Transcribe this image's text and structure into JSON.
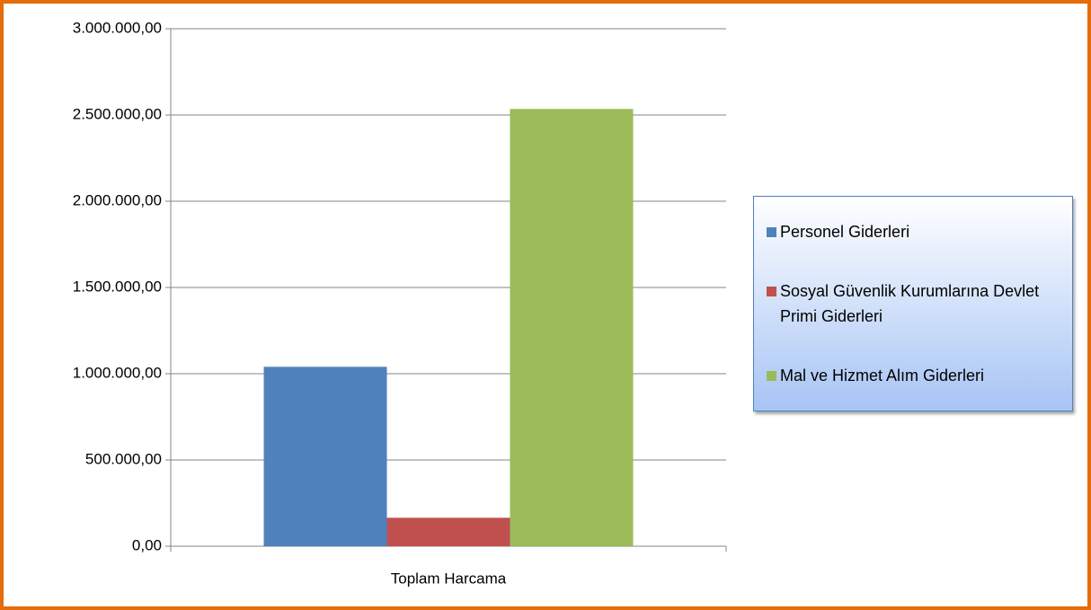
{
  "chart_data": {
    "type": "bar",
    "categories": [
      "Toplam Harcama"
    ],
    "series": [
      {
        "name": "Personel Giderleri",
        "color": "#4f81bd",
        "values": [
          1040000
        ]
      },
      {
        "name": "Sosyal Güvenlik Kurumlarına Devlet Primi Giderleri",
        "color": "#c0504d",
        "values": [
          165000
        ]
      },
      {
        "name": "Mal ve Hizmet Alım Giderleri",
        "color": "#9bbb59",
        "values": [
          2535000
        ]
      }
    ],
    "ylim": [
      0,
      3000000
    ],
    "yticks": [
      {
        "value": 0,
        "label": "0,00"
      },
      {
        "value": 500000,
        "label": "500.000,00"
      },
      {
        "value": 1000000,
        "label": "1.000.000,00"
      },
      {
        "value": 1500000,
        "label": "1.500.000,00"
      },
      {
        "value": 2000000,
        "label": "2.000.000,00"
      },
      {
        "value": 2500000,
        "label": "2.500.000,00"
      },
      {
        "value": 3000000,
        "label": "3.000.000,00"
      }
    ],
    "grid": true,
    "legend": "right"
  }
}
